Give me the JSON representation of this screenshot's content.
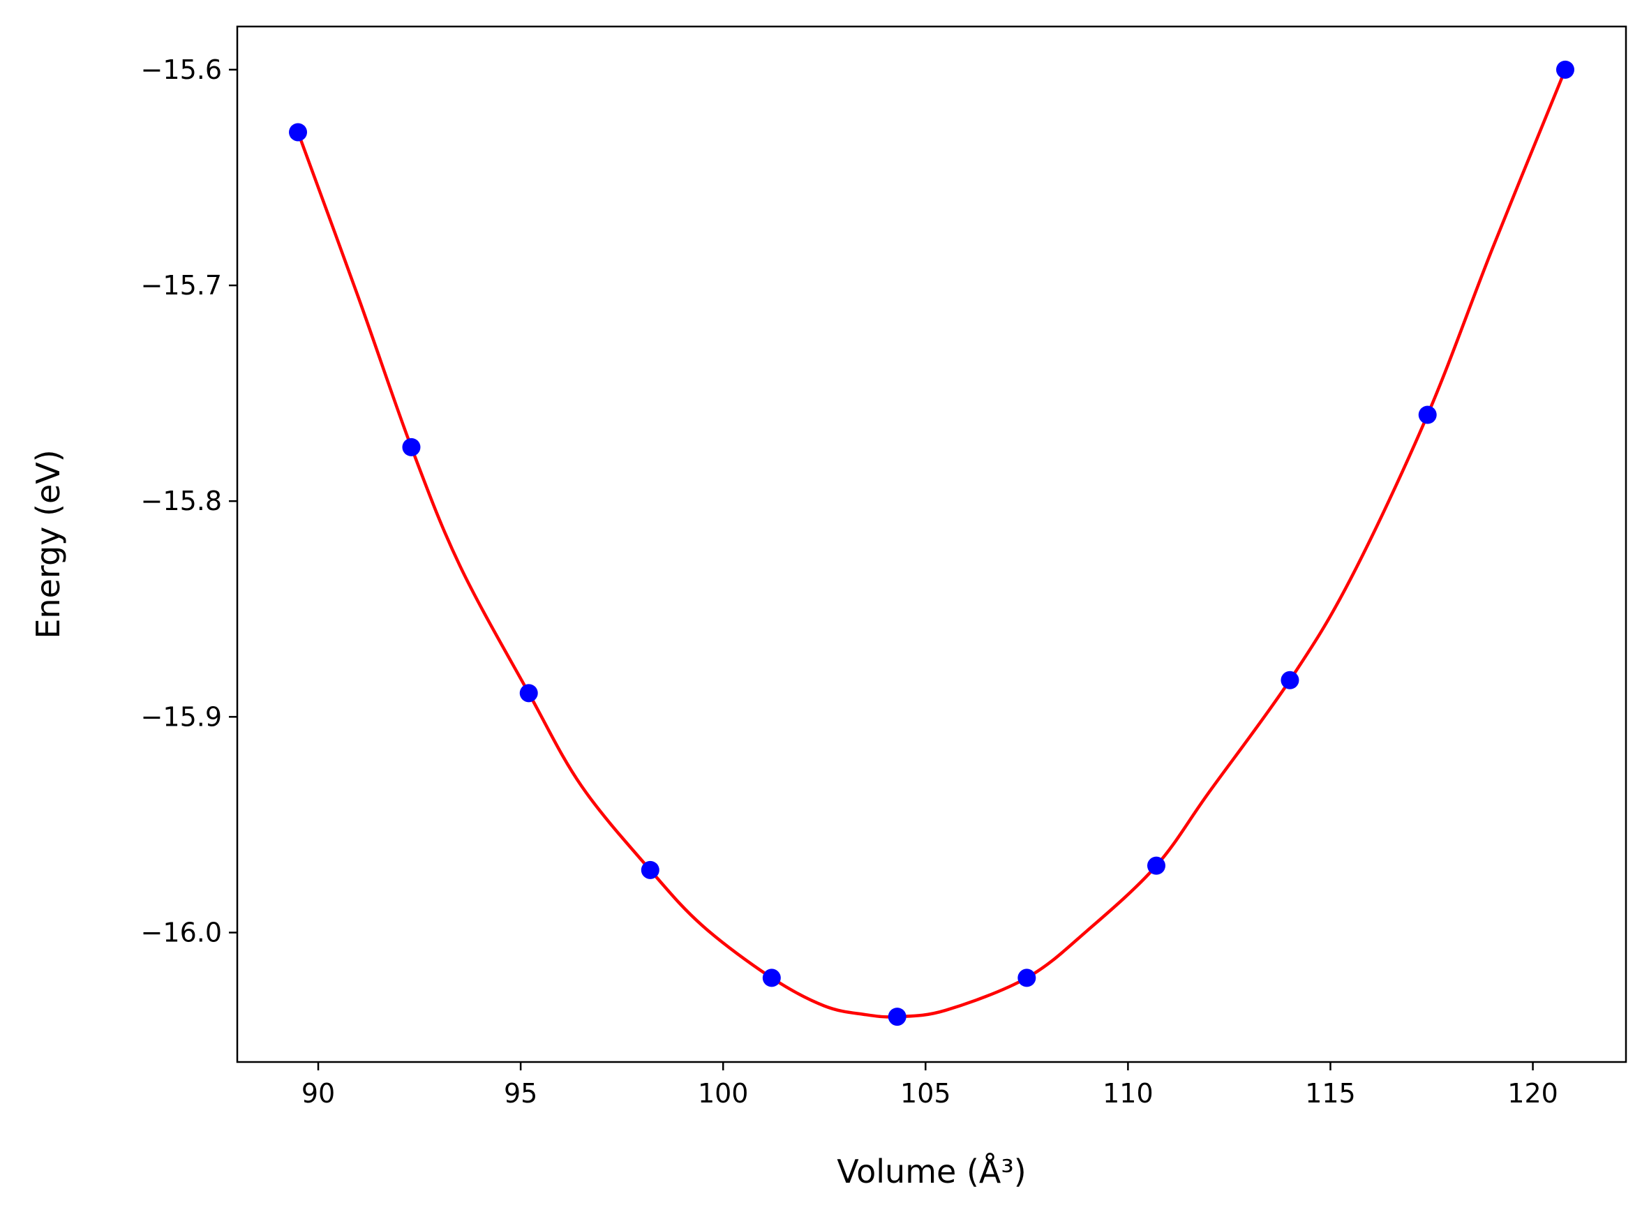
{
  "chart_data": {
    "type": "scatter",
    "xlabel": "Volume (Å³)",
    "ylabel": "Energy (eV)",
    "xlim": [
      88,
      122.3
    ],
    "ylim": [
      -16.06,
      -15.58
    ],
    "x_ticks": [
      {
        "value": 90,
        "label": "90"
      },
      {
        "value": 95,
        "label": "95"
      },
      {
        "value": 100,
        "label": "100"
      },
      {
        "value": 105,
        "label": "105"
      },
      {
        "value": 110,
        "label": "110"
      },
      {
        "value": 115,
        "label": "115"
      },
      {
        "value": 120,
        "label": "120"
      }
    ],
    "y_ticks": [
      {
        "value": -15.6,
        "label": "−15.6"
      },
      {
        "value": -15.7,
        "label": "−15.7"
      },
      {
        "value": -15.8,
        "label": "−15.8"
      },
      {
        "value": -15.9,
        "label": "−15.9"
      },
      {
        "value": -16.0,
        "label": "−16.0"
      }
    ],
    "grid": false,
    "series": [
      {
        "kind": "points",
        "color": "#0000ff",
        "x": [
          89.5,
          92.3,
          95.2,
          98.2,
          101.2,
          104.3,
          107.5,
          110.7,
          114.0,
          117.4,
          120.8
        ],
        "y": [
          -15.629,
          -15.775,
          -15.889,
          -15.971,
          -16.021,
          -16.039,
          -16.021,
          -15.969,
          -15.883,
          -15.76,
          -15.6
        ]
      },
      {
        "kind": "fit-curve",
        "color": "#ff0000",
        "x": [
          89.5,
          91.0,
          92.3,
          93.5,
          95.2,
          96.5,
          98.2,
          99.5,
          101.2,
          102.5,
          103.5,
          104.3,
          105.5,
          107.5,
          109.0,
          110.7,
          112.0,
          114.0,
          115.5,
          117.4,
          119.0,
          120.8
        ],
        "y": [
          -15.629,
          -15.706,
          -15.775,
          -15.83,
          -15.889,
          -15.932,
          -15.971,
          -15.997,
          -16.021,
          -16.034,
          -16.038,
          -16.039,
          -16.036,
          -16.021,
          -15.999,
          -15.969,
          -15.935,
          -15.883,
          -15.836,
          -15.76,
          -15.683,
          -15.6
        ]
      }
    ]
  }
}
